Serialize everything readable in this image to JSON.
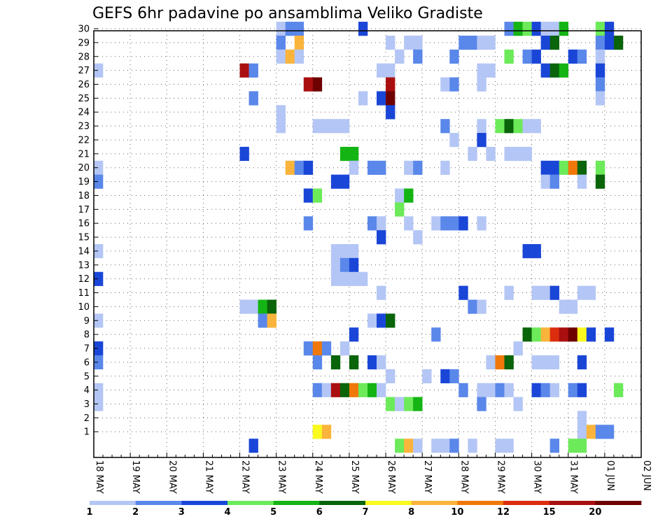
{
  "chart_data": {
    "type": "heatmap",
    "title": "GEFS 6hr padavine po ansamblima Veliko Gradiste",
    "xlabel": "",
    "ylabel": "",
    "x_start": "18 MAY 00Z",
    "x_end": "02 JUN 00Z",
    "step_hours": 6,
    "x_tick_labels": [
      "18 MAY",
      "19 MAY",
      "20 MAY",
      "21 MAY",
      "22 MAY",
      "23 MAY",
      "24 MAY",
      "25 MAY",
      "26 MAY",
      "27 MAY",
      "28 MAY",
      "29 MAY",
      "30 MAY",
      "31 MAY",
      "01 JUN",
      "02 JUN"
    ],
    "y_tick_labels": [
      "1",
      "2",
      "3",
      "4",
      "5",
      "6",
      "7",
      "8",
      "9",
      "10",
      "11",
      "12",
      "13",
      "14",
      "15",
      "16",
      "17",
      "18",
      "19",
      "20",
      "21",
      "22",
      "23",
      "24",
      "25",
      "26",
      "27",
      "28",
      "29",
      "30"
    ],
    "y_range": [
      0,
      30
    ],
    "grid": true,
    "colorbar": {
      "levels": [
        "1",
        "2",
        "3",
        "4",
        "5",
        "6",
        "7",
        "8",
        "10",
        "12",
        "15",
        "20"
      ],
      "colors": [
        "#b4c6f5",
        "#5a87ea",
        "#1a46d8",
        "#6cea5a",
        "#14b414",
        "#0a640a",
        "#fafa1e",
        "#fab43c",
        "#f0780a",
        "#dc2d0f",
        "#aa0f0f",
        "#6e0000"
      ]
    },
    "cells": [
      [
        "18 MAY 00Z",
        27,
        1
      ],
      [
        "18 MAY 00Z",
        20,
        1
      ],
      [
        "18 MAY 00Z",
        19,
        2
      ],
      [
        "18 MAY 00Z",
        14,
        1
      ],
      [
        "18 MAY 00Z",
        12,
        3
      ],
      [
        "18 MAY 00Z",
        9,
        1
      ],
      [
        "18 MAY 00Z",
        7,
        3
      ],
      [
        "18 MAY 00Z",
        6,
        2
      ],
      [
        "18 MAY 00Z",
        4,
        1
      ],
      [
        "18 MAY 00Z",
        3,
        1
      ],
      [
        "22 MAY 00Z",
        27,
        11
      ],
      [
        "22 MAY 00Z",
        21,
        3
      ],
      [
        "22 MAY 00Z",
        10,
        1
      ],
      [
        "22 MAY 06Z",
        27,
        2
      ],
      [
        "22 MAY 06Z",
        25,
        2
      ],
      [
        "22 MAY 06Z",
        10,
        1
      ],
      [
        "22 MAY 06Z",
        0,
        3
      ],
      [
        "22 MAY 12Z",
        10,
        5
      ],
      [
        "22 MAY 12Z",
        9,
        2
      ],
      [
        "22 MAY 18Z",
        10,
        6
      ],
      [
        "22 MAY 18Z",
        9,
        8
      ],
      [
        "23 MAY 00Z",
        30,
        1
      ],
      [
        "23 MAY 00Z",
        29,
        2
      ],
      [
        "23 MAY 00Z",
        28,
        1
      ],
      [
        "23 MAY 00Z",
        24,
        1
      ],
      [
        "23 MAY 00Z",
        23,
        1
      ],
      [
        "23 MAY 06Z",
        30,
        2
      ],
      [
        "23 MAY 06Z",
        28,
        8
      ],
      [
        "23 MAY 06Z",
        20,
        8
      ],
      [
        "23 MAY 12Z",
        30,
        2
      ],
      [
        "23 MAY 12Z",
        29,
        8
      ],
      [
        "23 MAY 12Z",
        28,
        1
      ],
      [
        "23 MAY 12Z",
        20,
        2
      ],
      [
        "23 MAY 18Z",
        26,
        11
      ],
      [
        "23 MAY 18Z",
        20,
        3
      ],
      [
        "23 MAY 18Z",
        18,
        3
      ],
      [
        "23 MAY 18Z",
        16,
        2
      ],
      [
        "23 MAY 18Z",
        7,
        2
      ],
      [
        "24 MAY 00Z",
        26,
        12
      ],
      [
        "24 MAY 00Z",
        23,
        1
      ],
      [
        "24 MAY 00Z",
        18,
        4
      ],
      [
        "24 MAY 00Z",
        7,
        9
      ],
      [
        "24 MAY 00Z",
        6,
        2
      ],
      [
        "24 MAY 00Z",
        4,
        2
      ],
      [
        "24 MAY 00Z",
        1,
        7
      ],
      [
        "24 MAY 06Z",
        23,
        1
      ],
      [
        "24 MAY 06Z",
        7,
        2
      ],
      [
        "24 MAY 06Z",
        4,
        1
      ],
      [
        "24 MAY 06Z",
        1,
        8
      ],
      [
        "24 MAY 12Z",
        23,
        1
      ],
      [
        "24 MAY 12Z",
        19,
        3
      ],
      [
        "24 MAY 12Z",
        14,
        1
      ],
      [
        "24 MAY 12Z",
        13,
        1
      ],
      [
        "24 MAY 12Z",
        12,
        1
      ],
      [
        "24 MAY 12Z",
        6,
        6
      ],
      [
        "24 MAY 12Z",
        4,
        11
      ],
      [
        "24 MAY 18Z",
        23,
        1
      ],
      [
        "24 MAY 18Z",
        21,
        5
      ],
      [
        "24 MAY 18Z",
        19,
        3
      ],
      [
        "24 MAY 18Z",
        14,
        1
      ],
      [
        "24 MAY 18Z",
        13,
        2
      ],
      [
        "24 MAY 18Z",
        12,
        1
      ],
      [
        "24 MAY 18Z",
        7,
        1
      ],
      [
        "24 MAY 18Z",
        4,
        6
      ],
      [
        "25 MAY 00Z",
        21,
        5
      ],
      [
        "25 MAY 00Z",
        20,
        1
      ],
      [
        "25 MAY 00Z",
        14,
        1
      ],
      [
        "25 MAY 00Z",
        13,
        3
      ],
      [
        "25 MAY 00Z",
        12,
        1
      ],
      [
        "25 MAY 00Z",
        8,
        3
      ],
      [
        "25 MAY 00Z",
        6,
        6
      ],
      [
        "25 MAY 00Z",
        4,
        9
      ],
      [
        "25 MAY 06Z",
        30,
        3
      ],
      [
        "25 MAY 06Z",
        25,
        1
      ],
      [
        "25 MAY 06Z",
        12,
        1
      ],
      [
        "25 MAY 06Z",
        4,
        4
      ],
      [
        "25 MAY 12Z",
        20,
        2
      ],
      [
        "25 MAY 12Z",
        16,
        2
      ],
      [
        "25 MAY 12Z",
        9,
        1
      ],
      [
        "25 MAY 12Z",
        6,
        3
      ],
      [
        "25 MAY 12Z",
        4,
        5
      ],
      [
        "25 MAY 18Z",
        27,
        1
      ],
      [
        "25 MAY 18Z",
        25,
        3
      ],
      [
        "25 MAY 18Z",
        20,
        2
      ],
      [
        "25 MAY 18Z",
        16,
        1
      ],
      [
        "25 MAY 18Z",
        15,
        3
      ],
      [
        "25 MAY 18Z",
        11,
        1
      ],
      [
        "25 MAY 18Z",
        9,
        3
      ],
      [
        "25 MAY 18Z",
        6,
        1
      ],
      [
        "25 MAY 18Z",
        4,
        1
      ],
      [
        "26 MAY 00Z",
        29,
        1
      ],
      [
        "26 MAY 00Z",
        27,
        1
      ],
      [
        "26 MAY 00Z",
        26,
        11
      ],
      [
        "26 MAY 00Z",
        25,
        12
      ],
      [
        "26 MAY 00Z",
        24,
        3
      ],
      [
        "26 MAY 00Z",
        9,
        6
      ],
      [
        "26 MAY 00Z",
        5,
        1
      ],
      [
        "26 MAY 00Z",
        3,
        4
      ],
      [
        "26 MAY 06Z",
        28,
        1
      ],
      [
        "26 MAY 06Z",
        18,
        1
      ],
      [
        "26 MAY 06Z",
        17,
        4
      ],
      [
        "26 MAY 06Z",
        3,
        1
      ],
      [
        "26 MAY 06Z",
        0,
        4
      ],
      [
        "26 MAY 12Z",
        29,
        1
      ],
      [
        "26 MAY 12Z",
        20,
        1
      ],
      [
        "26 MAY 12Z",
        18,
        5
      ],
      [
        "26 MAY 12Z",
        16,
        1
      ],
      [
        "26 MAY 12Z",
        3,
        4
      ],
      [
        "26 MAY 12Z",
        0,
        8
      ],
      [
        "26 MAY 18Z",
        29,
        1
      ],
      [
        "26 MAY 18Z",
        28,
        2
      ],
      [
        "26 MAY 18Z",
        20,
        2
      ],
      [
        "26 MAY 18Z",
        15,
        1
      ],
      [
        "26 MAY 18Z",
        3,
        5
      ],
      [
        "26 MAY 18Z",
        0,
        1
      ],
      [
        "27 MAY 00Z",
        5,
        1
      ],
      [
        "27 MAY 06Z",
        16,
        1
      ],
      [
        "27 MAY 06Z",
        8,
        2
      ],
      [
        "27 MAY 06Z",
        0,
        1
      ],
      [
        "27 MAY 12Z",
        26,
        1
      ],
      [
        "27 MAY 12Z",
        23,
        2
      ],
      [
        "27 MAY 12Z",
        20,
        1
      ],
      [
        "27 MAY 12Z",
        16,
        2
      ],
      [
        "27 MAY 12Z",
        5,
        3
      ],
      [
        "27 MAY 12Z",
        0,
        1
      ],
      [
        "27 MAY 18Z",
        28,
        2
      ],
      [
        "27 MAY 18Z",
        26,
        2
      ],
      [
        "27 MAY 18Z",
        22,
        1
      ],
      [
        "27 MAY 18Z",
        16,
        2
      ],
      [
        "27 MAY 18Z",
        5,
        2
      ],
      [
        "27 MAY 18Z",
        0,
        2
      ],
      [
        "28 MAY 00Z",
        29,
        2
      ],
      [
        "28 MAY 00Z",
        16,
        3
      ],
      [
        "28 MAY 00Z",
        11,
        3
      ],
      [
        "28 MAY 00Z",
        4,
        2
      ],
      [
        "28 MAY 06Z",
        29,
        2
      ],
      [
        "28 MAY 06Z",
        21,
        1
      ],
      [
        "28 MAY 06Z",
        10,
        2
      ],
      [
        "28 MAY 06Z",
        0,
        1
      ],
      [
        "28 MAY 12Z",
        29,
        1
      ],
      [
        "28 MAY 12Z",
        27,
        1
      ],
      [
        "28 MAY 12Z",
        26,
        1
      ],
      [
        "28 MAY 12Z",
        23,
        1
      ],
      [
        "28 MAY 12Z",
        22,
        3
      ],
      [
        "28 MAY 12Z",
        16,
        1
      ],
      [
        "28 MAY 12Z",
        10,
        1
      ],
      [
        "28 MAY 12Z",
        4,
        1
      ],
      [
        "28 MAY 12Z",
        3,
        2
      ],
      [
        "28 MAY 18Z",
        29,
        1
      ],
      [
        "28 MAY 18Z",
        27,
        1
      ],
      [
        "28 MAY 18Z",
        21,
        1
      ],
      [
        "28 MAY 18Z",
        6,
        1
      ],
      [
        "28 MAY 18Z",
        4,
        1
      ],
      [
        "29 MAY 00Z",
        23,
        4
      ],
      [
        "29 MAY 00Z",
        6,
        9
      ],
      [
        "29 MAY 00Z",
        4,
        2
      ],
      [
        "29 MAY 00Z",
        0,
        1
      ],
      [
        "29 MAY 06Z",
        30,
        2
      ],
      [
        "29 MAY 06Z",
        28,
        4
      ],
      [
        "29 MAY 06Z",
        23,
        6
      ],
      [
        "29 MAY 06Z",
        21,
        1
      ],
      [
        "29 MAY 06Z",
        11,
        1
      ],
      [
        "29 MAY 06Z",
        6,
        6
      ],
      [
        "29 MAY 06Z",
        4,
        1
      ],
      [
        "29 MAY 06Z",
        0,
        1
      ],
      [
        "29 MAY 12Z",
        30,
        5
      ],
      [
        "29 MAY 12Z",
        23,
        4
      ],
      [
        "29 MAY 12Z",
        21,
        1
      ],
      [
        "29 MAY 12Z",
        7,
        1
      ],
      [
        "29 MAY 12Z",
        3,
        1
      ],
      [
        "29 MAY 18Z",
        30,
        4
      ],
      [
        "29 MAY 18Z",
        28,
        2
      ],
      [
        "29 MAY 18Z",
        23,
        1
      ],
      [
        "29 MAY 18Z",
        21,
        1
      ],
      [
        "29 MAY 18Z",
        14,
        3
      ],
      [
        "29 MAY 18Z",
        8,
        6
      ],
      [
        "30 MAY 00Z",
        30,
        3
      ],
      [
        "30 MAY 00Z",
        28,
        3
      ],
      [
        "30 MAY 00Z",
        23,
        1
      ],
      [
        "30 MAY 00Z",
        14,
        3
      ],
      [
        "30 MAY 00Z",
        11,
        1
      ],
      [
        "30 MAY 00Z",
        8,
        4
      ],
      [
        "30 MAY 00Z",
        6,
        1
      ],
      [
        "30 MAY 00Z",
        4,
        3
      ],
      [
        "30 MAY 06Z",
        30,
        1
      ],
      [
        "30 MAY 06Z",
        29,
        3
      ],
      [
        "30 MAY 06Z",
        27,
        3
      ],
      [
        "30 MAY 06Z",
        20,
        3
      ],
      [
        "30 MAY 06Z",
        19,
        1
      ],
      [
        "30 MAY 06Z",
        11,
        1
      ],
      [
        "30 MAY 06Z",
        8,
        8
      ],
      [
        "30 MAY 06Z",
        6,
        1
      ],
      [
        "30 MAY 06Z",
        4,
        2
      ],
      [
        "30 MAY 12Z",
        30,
        1
      ],
      [
        "30 MAY 12Z",
        29,
        6
      ],
      [
        "30 MAY 12Z",
        27,
        6
      ],
      [
        "30 MAY 12Z",
        20,
        3
      ],
      [
        "30 MAY 12Z",
        19,
        2
      ],
      [
        "30 MAY 12Z",
        11,
        3
      ],
      [
        "30 MAY 12Z",
        8,
        10
      ],
      [
        "30 MAY 12Z",
        6,
        1
      ],
      [
        "30 MAY 12Z",
        4,
        1
      ],
      [
        "30 MAY 12Z",
        0,
        2
      ],
      [
        "30 MAY 18Z",
        30,
        5
      ],
      [
        "30 MAY 18Z",
        27,
        5
      ],
      [
        "30 MAY 18Z",
        20,
        4
      ],
      [
        "30 MAY 18Z",
        10,
        1
      ],
      [
        "30 MAY 18Z",
        8,
        11
      ],
      [
        "31 MAY 00Z",
        28,
        3
      ],
      [
        "31 MAY 00Z",
        20,
        9
      ],
      [
        "31 MAY 00Z",
        10,
        1
      ],
      [
        "31 MAY 00Z",
        8,
        12
      ],
      [
        "31 MAY 00Z",
        4,
        2
      ],
      [
        "31 MAY 00Z",
        0,
        4
      ],
      [
        "31 MAY 06Z",
        28,
        2
      ],
      [
        "31 MAY 06Z",
        20,
        6
      ],
      [
        "31 MAY 06Z",
        19,
        1
      ],
      [
        "31 MAY 06Z",
        11,
        1
      ],
      [
        "31 MAY 06Z",
        8,
        7
      ],
      [
        "31 MAY 06Z",
        6,
        3
      ],
      [
        "31 MAY 06Z",
        4,
        3
      ],
      [
        "31 MAY 06Z",
        2,
        1
      ],
      [
        "31 MAY 06Z",
        1,
        1
      ],
      [
        "31 MAY 06Z",
        0,
        4
      ],
      [
        "31 MAY 12Z",
        11,
        1
      ],
      [
        "31 MAY 12Z",
        8,
        3
      ],
      [
        "31 MAY 12Z",
        1,
        8
      ],
      [
        "31 MAY 18Z",
        30,
        4
      ],
      [
        "31 MAY 18Z",
        29,
        2
      ],
      [
        "31 MAY 18Z",
        28,
        1
      ],
      [
        "31 MAY 18Z",
        27,
        3
      ],
      [
        "31 MAY 18Z",
        26,
        2
      ],
      [
        "31 MAY 18Z",
        25,
        1
      ],
      [
        "31 MAY 18Z",
        20,
        4
      ],
      [
        "31 MAY 18Z",
        19,
        6
      ],
      [
        "31 MAY 18Z",
        1,
        2
      ],
      [
        "01 JUN 00Z",
        30,
        3
      ],
      [
        "01 JUN 00Z",
        29,
        3
      ],
      [
        "01 JUN 00Z",
        8,
        3
      ],
      [
        "01 JUN 00Z",
        1,
        2
      ],
      [
        "01 JUN 06Z",
        29,
        6
      ],
      [
        "01 JUN 06Z",
        4,
        4
      ]
    ]
  }
}
